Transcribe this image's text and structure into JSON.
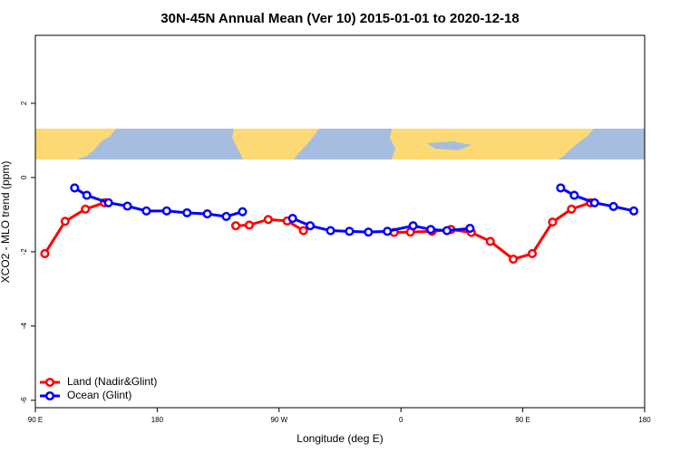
{
  "chart_data": {
    "type": "line",
    "title": "30N-45N Annual Mean (Ver 10)   2015-01-01 to 2020-12-18",
    "x_label": "Longitude (deg E)",
    "y_label": "XCO2 - MLO trend (ppm)",
    "xlim": [
      90,
      540
    ],
    "ylim": [
      -6.2,
      3.83
    ],
    "xticks": [
      {
        "value": 90,
        "label": "90 E"
      },
      180,
      {
        "value": 270,
        "label": "90 W"
      },
      {
        "value": 360,
        "label": "0"
      },
      {
        "value": 450,
        "label": "90 E"
      },
      {
        "value": 540,
        "label": "180"
      }
    ],
    "yticks": [
      -6,
      -4,
      -2,
      0,
      2
    ],
    "legend": "bottom-left",
    "series": [
      {
        "name": "Land (Nadir&Glint)",
        "color": "#ff0000",
        "x": [
          97,
          112,
          127,
          141,
          null,
          238,
          248,
          262,
          276,
          288,
          null,
          355,
          367,
          383,
          397,
          412,
          426,
          443,
          457,
          472,
          486,
          500
        ],
        "values": [
          -2.05,
          -1.18,
          -0.85,
          -0.68,
          null,
          -1.3,
          -1.28,
          -1.13,
          -1.17,
          -1.43,
          null,
          -1.48,
          -1.47,
          -1.45,
          -1.4,
          -1.48,
          -1.72,
          -2.2,
          -2.05,
          -1.2,
          -0.85,
          -0.68
        ]
      },
      {
        "name": "Ocean (Glint)",
        "color": "#0000ff",
        "x": [
          119,
          128,
          144,
          158,
          172,
          187,
          202,
          217,
          231,
          243,
          null,
          280,
          293,
          308,
          322,
          336,
          350,
          369,
          382,
          394,
          411,
          null,
          478,
          488,
          503,
          517,
          532
        ],
        "values": [
          -0.28,
          -0.48,
          -0.68,
          -0.77,
          -0.9,
          -0.9,
          -0.95,
          -0.98,
          -1.05,
          -0.92,
          null,
          -1.1,
          -1.3,
          -1.43,
          -1.45,
          -1.47,
          -1.45,
          -1.3,
          -1.4,
          -1.43,
          -1.37,
          null,
          -0.28,
          -0.48,
          -0.68,
          -0.78,
          -0.9
        ]
      }
    ]
  }
}
